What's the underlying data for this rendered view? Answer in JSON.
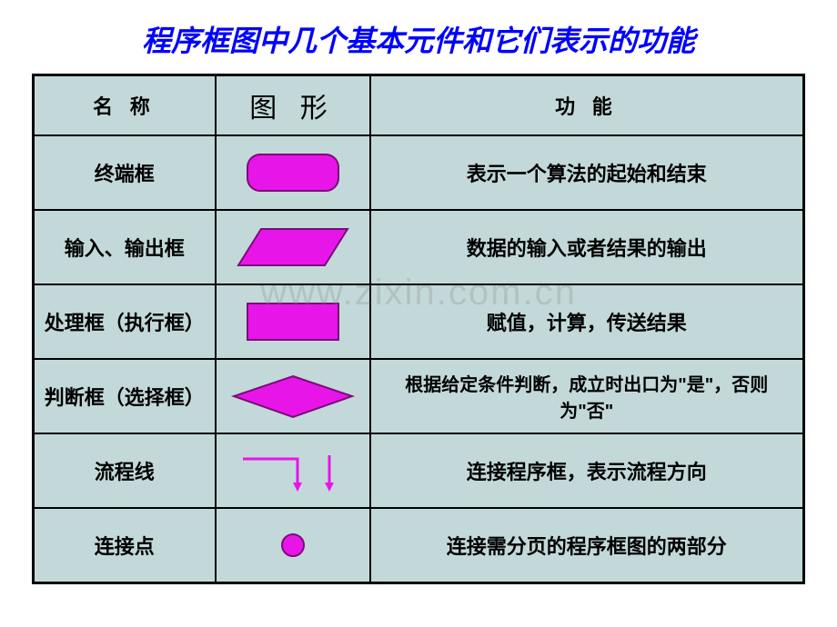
{
  "title": "程序框图中几个基本元件和它们表示的功能",
  "title_color": "#0000ff",
  "title_fontsize": 32,
  "watermark": "www.zixin.com.cn",
  "table": {
    "background_color": "#c3d9d9",
    "border_color": "#000000",
    "shape_fill": "#e815e8",
    "shape_stroke": "#7a0d7a",
    "headers": {
      "name": "名 称",
      "shape": "图 形",
      "func": "功    能"
    },
    "rows": [
      {
        "name": "终端框",
        "shape": "rounded-rect",
        "func": "表示一个算法的起始和结束"
      },
      {
        "name": "输入、输出框",
        "shape": "parallelogram",
        "func": "数据的输入或者结果的输出"
      },
      {
        "name": "处理框（执行框）",
        "shape": "rect",
        "func": "赋值，计算，传送结果"
      },
      {
        "name": "判断框（选择框）",
        "shape": "diamond",
        "func": "根据给定条件判断，成立时出口为\"是\"，否则为\"否\"",
        "small": true
      },
      {
        "name": "流程线",
        "shape": "flowline",
        "func": "连接程序框，表示流程方向"
      },
      {
        "name": "连接点",
        "shape": "circle",
        "func": "连接需分页的程序框图的两部分"
      }
    ]
  }
}
